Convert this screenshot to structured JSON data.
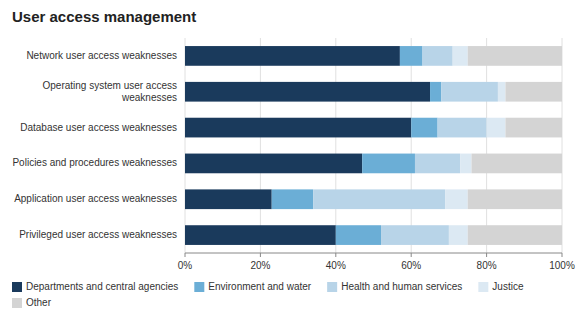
{
  "chart_data": {
    "type": "bar",
    "orientation": "horizontal",
    "stacked": true,
    "title": "User access management",
    "categories": [
      "Network user access weaknesses",
      "Operating system user access\nweaknesses",
      "Database user access weaknesses",
      "Policies and procedures weaknesses",
      "Application user access weaknesses",
      "Privileged user access weaknesses"
    ],
    "series": [
      {
        "name": "Departments and central agencies",
        "color": "#1a3a5c",
        "values": [
          57,
          65,
          60,
          47,
          23,
          40
        ]
      },
      {
        "name": "Environment and water",
        "color": "#6baed6",
        "values": [
          6,
          3,
          7,
          14,
          11,
          12
        ]
      },
      {
        "name": "Health and human services",
        "color": "#b8d4e8",
        "values": [
          8,
          15,
          13,
          12,
          35,
          18
        ]
      },
      {
        "name": "Justice",
        "color": "#dce9f3",
        "values": [
          4,
          2,
          5,
          3,
          6,
          5
        ]
      },
      {
        "name": "Other",
        "color": "#d4d4d4",
        "values": [
          25,
          15,
          15,
          24,
          25,
          25
        ]
      }
    ],
    "xlim": [
      0,
      100
    ],
    "xticks": [
      {
        "value": 0,
        "label": "0%"
      },
      {
        "value": 20,
        "label": "20%"
      },
      {
        "value": 40,
        "label": "40%"
      },
      {
        "value": 60,
        "label": "60%"
      },
      {
        "value": 80,
        "label": "80%"
      },
      {
        "value": 100,
        "label": "100%"
      }
    ],
    "grid": true,
    "legend": "bottom"
  }
}
